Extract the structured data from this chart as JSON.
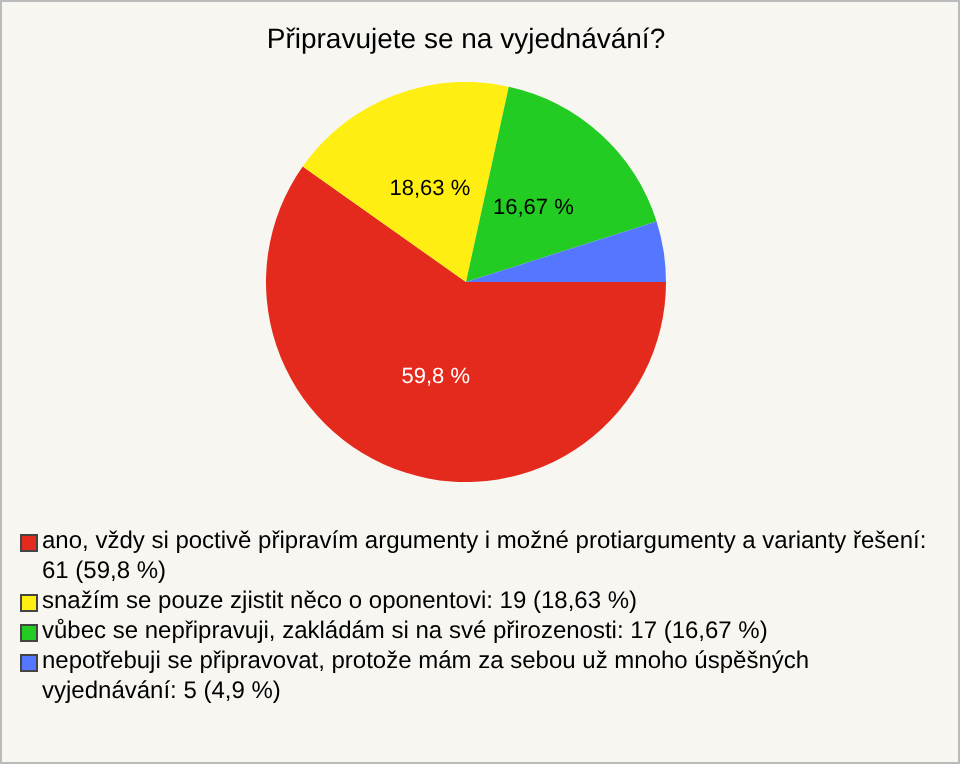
{
  "chart_data": {
    "type": "pie",
    "title": "Připravujete se na vyjednávání?",
    "categories": [
      "ano, vždy si poctivě připravím argumenty i možné protiargumenty a varianty řešení: 61 (59,8 %)",
      "snažím se pouze zjistit něco o oponentovi: 19 (18,63 %)",
      "vůbec se nepřipravuji, zakládám si na své přirozenosti: 17 (16,67 %)",
      "nepotřebuji se připravovat, protože mám za sebou už mnoho úspěšných vyjednávání: 5 (4,9 %)"
    ],
    "values": [
      59.8,
      18.63,
      16.67,
      4.9
    ],
    "colors": [
      "#e42a1c",
      "#ffee11",
      "#22cc22",
      "#5577ff"
    ],
    "value_labels": [
      "59,8 %",
      "18,63 %",
      "16,67 %",
      null
    ],
    "legend": "bottom"
  }
}
